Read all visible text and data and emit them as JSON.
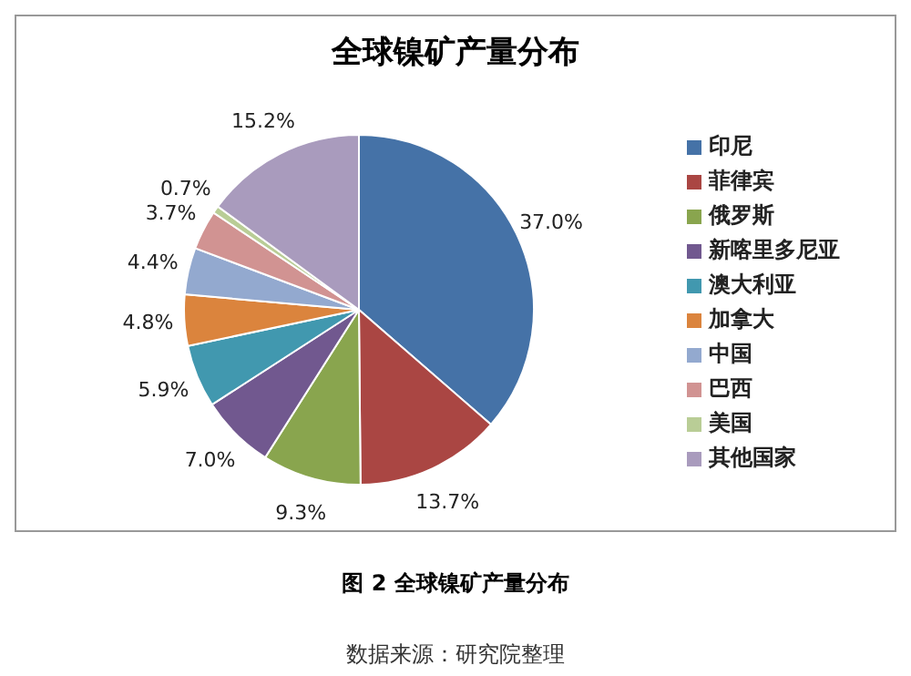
{
  "chart_data": {
    "type": "pie",
    "title": "全球镍矿产量分布",
    "categories": [
      "印尼",
      "菲律宾",
      "俄罗斯",
      "新喀里多尼亚",
      "澳大利亚",
      "加拿大",
      "中国",
      "巴西",
      "美国",
      "其他国家"
    ],
    "values": [
      37.0,
      13.7,
      9.3,
      7.0,
      5.9,
      4.8,
      4.4,
      3.7,
      0.7,
      15.2
    ],
    "value_labels": [
      "37.0%",
      "13.7%",
      "9.3%",
      "7.0%",
      "5.9%",
      "4.8%",
      "4.4%",
      "3.7%",
      "0.7%",
      "15.2%"
    ],
    "colors": [
      "#4572a7",
      "#aa4643",
      "#89a54e",
      "#71588f",
      "#4198af",
      "#db843d",
      "#93a9cf",
      "#d19392",
      "#b9cd96",
      "#a99bbd"
    ],
    "legend": "right",
    "annotations": [
      "图 2 全球镍矿产量分布",
      "数据来源：研究院整理"
    ]
  }
}
